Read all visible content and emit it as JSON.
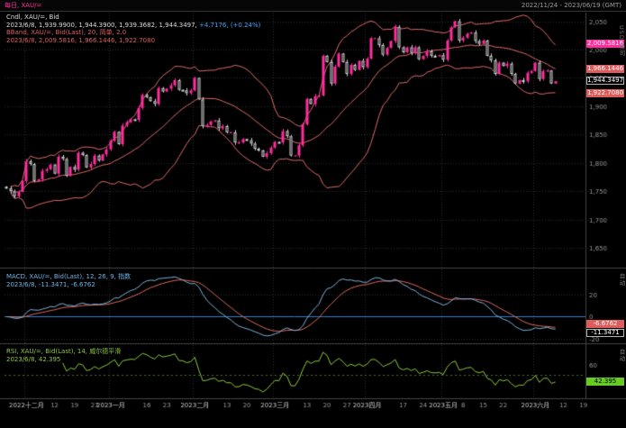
{
  "top_bar": {
    "left": "每日, XAU/=",
    "right": "2022/11/24 - 2023/06/19 (GMT)"
  },
  "main_legend": {
    "line1": "Cndl, XAU/=, Bid",
    "line2_prefix": "2023/6/8, 1,939.9900, 1,944.3900, 1,939.3682, 1,944.3497, ",
    "line2_change": "+4.7176, (+0.24%)",
    "line3": "BBand, XAU/=, Bid(Last), 20, 简单, 2.0",
    "line4": "2023/6/8, 2,009.5816, 1,966.1446, 1,922.7080"
  },
  "macd_legend": {
    "line1": "MACD, XAU/=, Bid(Last), 12, 26, 9, 指数",
    "line2": "2023/6/8, -11.3471, -6.6762"
  },
  "rsi_legend": {
    "line1": "RSI, XAU/=, Bid(Last), 14, 威尔德平滑",
    "line2": "2023/6/8, 42.395"
  },
  "axis_boxes": {
    "bb_upper": "2,009.5816",
    "bb_mid": "1,966.1446",
    "last_price": "1,944.3497",
    "bb_lower": "1,922.7080",
    "macd_signal": "-6.6762",
    "macd_main": "-11.3471",
    "rsi_value": "42.395"
  },
  "axis_titles": {
    "main": "USD 盎司",
    "macd": "自动",
    "rsi": "自动"
  },
  "colors": {
    "background": "#000000",
    "up_candle": "#ff2d9c",
    "down_candle": "#d8d8d8",
    "bollinger": "#e06a6a",
    "macd_line": "#7fb2d9",
    "macd_signal": "#dd6a5f",
    "macd_zero_line": "#2e7fd0",
    "rsi_line": "#8fc93a",
    "grid": "#2d2d2d",
    "axis_text": "#9a9a9a",
    "month_text": "#cfcfcf",
    "separator": "#454545",
    "change_positive": "#3da5ff"
  },
  "chart_data": {
    "type": "candlestick",
    "symbol": "XAU/=",
    "interval": "每日",
    "last_date": "2023/6/8",
    "first_open": 1758,
    "closes": [
      1755,
      1750,
      1741,
      1749,
      1768,
      1803,
      1798,
      1768,
      1771,
      1786,
      1789,
      1797,
      1781,
      1811,
      1807,
      1777,
      1793,
      1788,
      1818,
      1814,
      1792,
      1798,
      1813,
      1804,
      1815,
      1824,
      1839,
      1855,
      1833,
      1866,
      1872,
      1877,
      1876,
      1897,
      1920,
      1916,
      1909,
      1904,
      1932,
      1926,
      1931,
      1937,
      1946,
      1929,
      1928,
      1923,
      1928,
      1950,
      1912,
      1865,
      1867,
      1873,
      1875,
      1861,
      1865,
      1854,
      1854,
      1836,
      1836,
      1842,
      1840,
      1834,
      1825,
      1822,
      1811,
      1817,
      1827,
      1837,
      1836,
      1856,
      1847,
      1813,
      1813,
      1831,
      1868,
      1913,
      1904,
      1918,
      1919,
      1989,
      1978,
      1940,
      1970,
      1993,
      1978,
      1957,
      1973,
      1964,
      1980,
      1969,
      1984,
      2020,
      2020,
      2008,
      1991,
      2003,
      2015,
      2040,
      2004,
      1995,
      2004,
      1994,
      2004,
      1983,
      1989,
      1997,
      1989,
      1988,
      1990,
      1982,
      2016,
      2039,
      2050,
      2016,
      2021,
      2028,
      2030,
      2015,
      2010,
      2016,
      1989,
      1981,
      1957,
      1977,
      1971,
      1975,
      1957,
      1940,
      1946,
      1944,
      1959,
      1962,
      1977,
      1948,
      1962,
      1963,
      1940,
      1944.35
    ],
    "last_candle": {
      "open": 1939.99,
      "high": 1944.39,
      "low": 1939.3682,
      "close": 1944.3497,
      "change": 4.7176,
      "change_pct": 0.24
    },
    "overlays": {
      "bollinger": {
        "period": 20,
        "mult": 2.0,
        "ma_type": "简单",
        "last_upper": 2009.5816,
        "last_mid": 1966.1446,
        "last_lower": 1922.708
      }
    },
    "indicators": {
      "macd": {
        "fast": 12,
        "slow": 26,
        "signal": 9,
        "ma_type": "指数",
        "last_macd": -11.3471,
        "last_signal": -6.6762
      },
      "rsi": {
        "period": 14,
        "smoothing": "威尔德平滑",
        "last": 42.395
      }
    },
    "y_axis": {
      "range": [
        1620,
        2062
      ],
      "ticks": [
        2050,
        2000,
        1950,
        1900,
        1850,
        1800,
        1750,
        1700,
        1650
      ]
    },
    "macd_axis": {
      "ticks": [
        20,
        0,
        -20
      ]
    },
    "rsi_axis": {
      "ticks": [
        60,
        40
      ],
      "mid_line": 50
    },
    "x_axis": {
      "slots": 145,
      "month_gridline_indices": [
        5,
        26,
        47,
        67,
        90,
        109,
        132
      ],
      "ticks": [
        {
          "i": 5,
          "label": "2022十二月",
          "m": true
        },
        {
          "i": 12,
          "label": "12"
        },
        {
          "i": 17,
          "label": "19"
        },
        {
          "i": 22,
          "label": "27"
        },
        {
          "i": 26,
          "label": "2023一月",
          "m": true
        },
        {
          "i": 35,
          "label": "16"
        },
        {
          "i": 40,
          "label": "23"
        },
        {
          "i": 47,
          "label": "2023二月",
          "m": true
        },
        {
          "i": 55,
          "label": "13"
        },
        {
          "i": 60,
          "label": "20"
        },
        {
          "i": 67,
          "label": "2023三月",
          "m": true
        },
        {
          "i": 75,
          "label": "13"
        },
        {
          "i": 80,
          "label": "20"
        },
        {
          "i": 85,
          "label": "27"
        },
        {
          "i": 90,
          "label": "2023四月",
          "m": true
        },
        {
          "i": 99,
          "label": "17"
        },
        {
          "i": 104,
          "label": "24"
        },
        {
          "i": 109,
          "label": "2023五月",
          "m": true
        },
        {
          "i": 114,
          "label": "8"
        },
        {
          "i": 119,
          "label": "15"
        },
        {
          "i": 124,
          "label": "22"
        },
        {
          "i": 132,
          "label": "2023六月",
          "m": true
        },
        {
          "i": 139,
          "label": "12"
        },
        {
          "i": 144,
          "label": "19"
        }
      ]
    }
  }
}
